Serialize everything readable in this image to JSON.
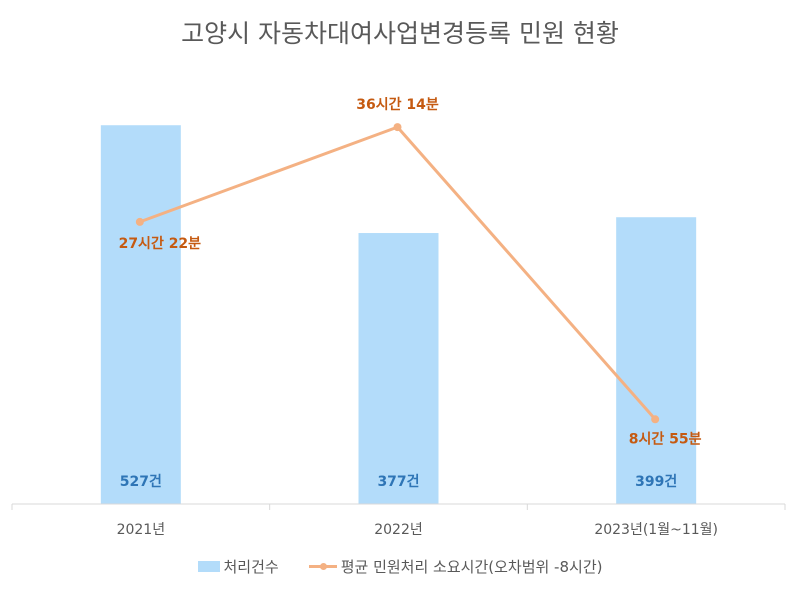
{
  "chart_data": {
    "type": "bar",
    "title": "고양시 자동차대여사업변경등록 민원 현황",
    "categories": [
      "2021년",
      "2022년",
      "2023년(1월~11월)"
    ],
    "series": [
      {
        "name": "처리건수",
        "type": "bar",
        "values": [
          527,
          377,
          399
        ],
        "labels": [
          "527건",
          "377건",
          "399건"
        ],
        "color": "#b3dcfa",
        "label_color": "#2e75b6"
      },
      {
        "name": "평균 민원처리 소요시간(오차범위 -8시간)",
        "type": "line",
        "values_hours": [
          27.37,
          36.23,
          8.92
        ],
        "labels": [
          "27시간 22분",
          "36시간 14분",
          "8시간 55분"
        ],
        "color": "#f4b183",
        "label_color": "#c55a11"
      }
    ],
    "bar_ylim": [
      0,
      640
    ],
    "line_ylim": [
      1,
      44
    ],
    "grid": false,
    "legend": "bottom"
  }
}
